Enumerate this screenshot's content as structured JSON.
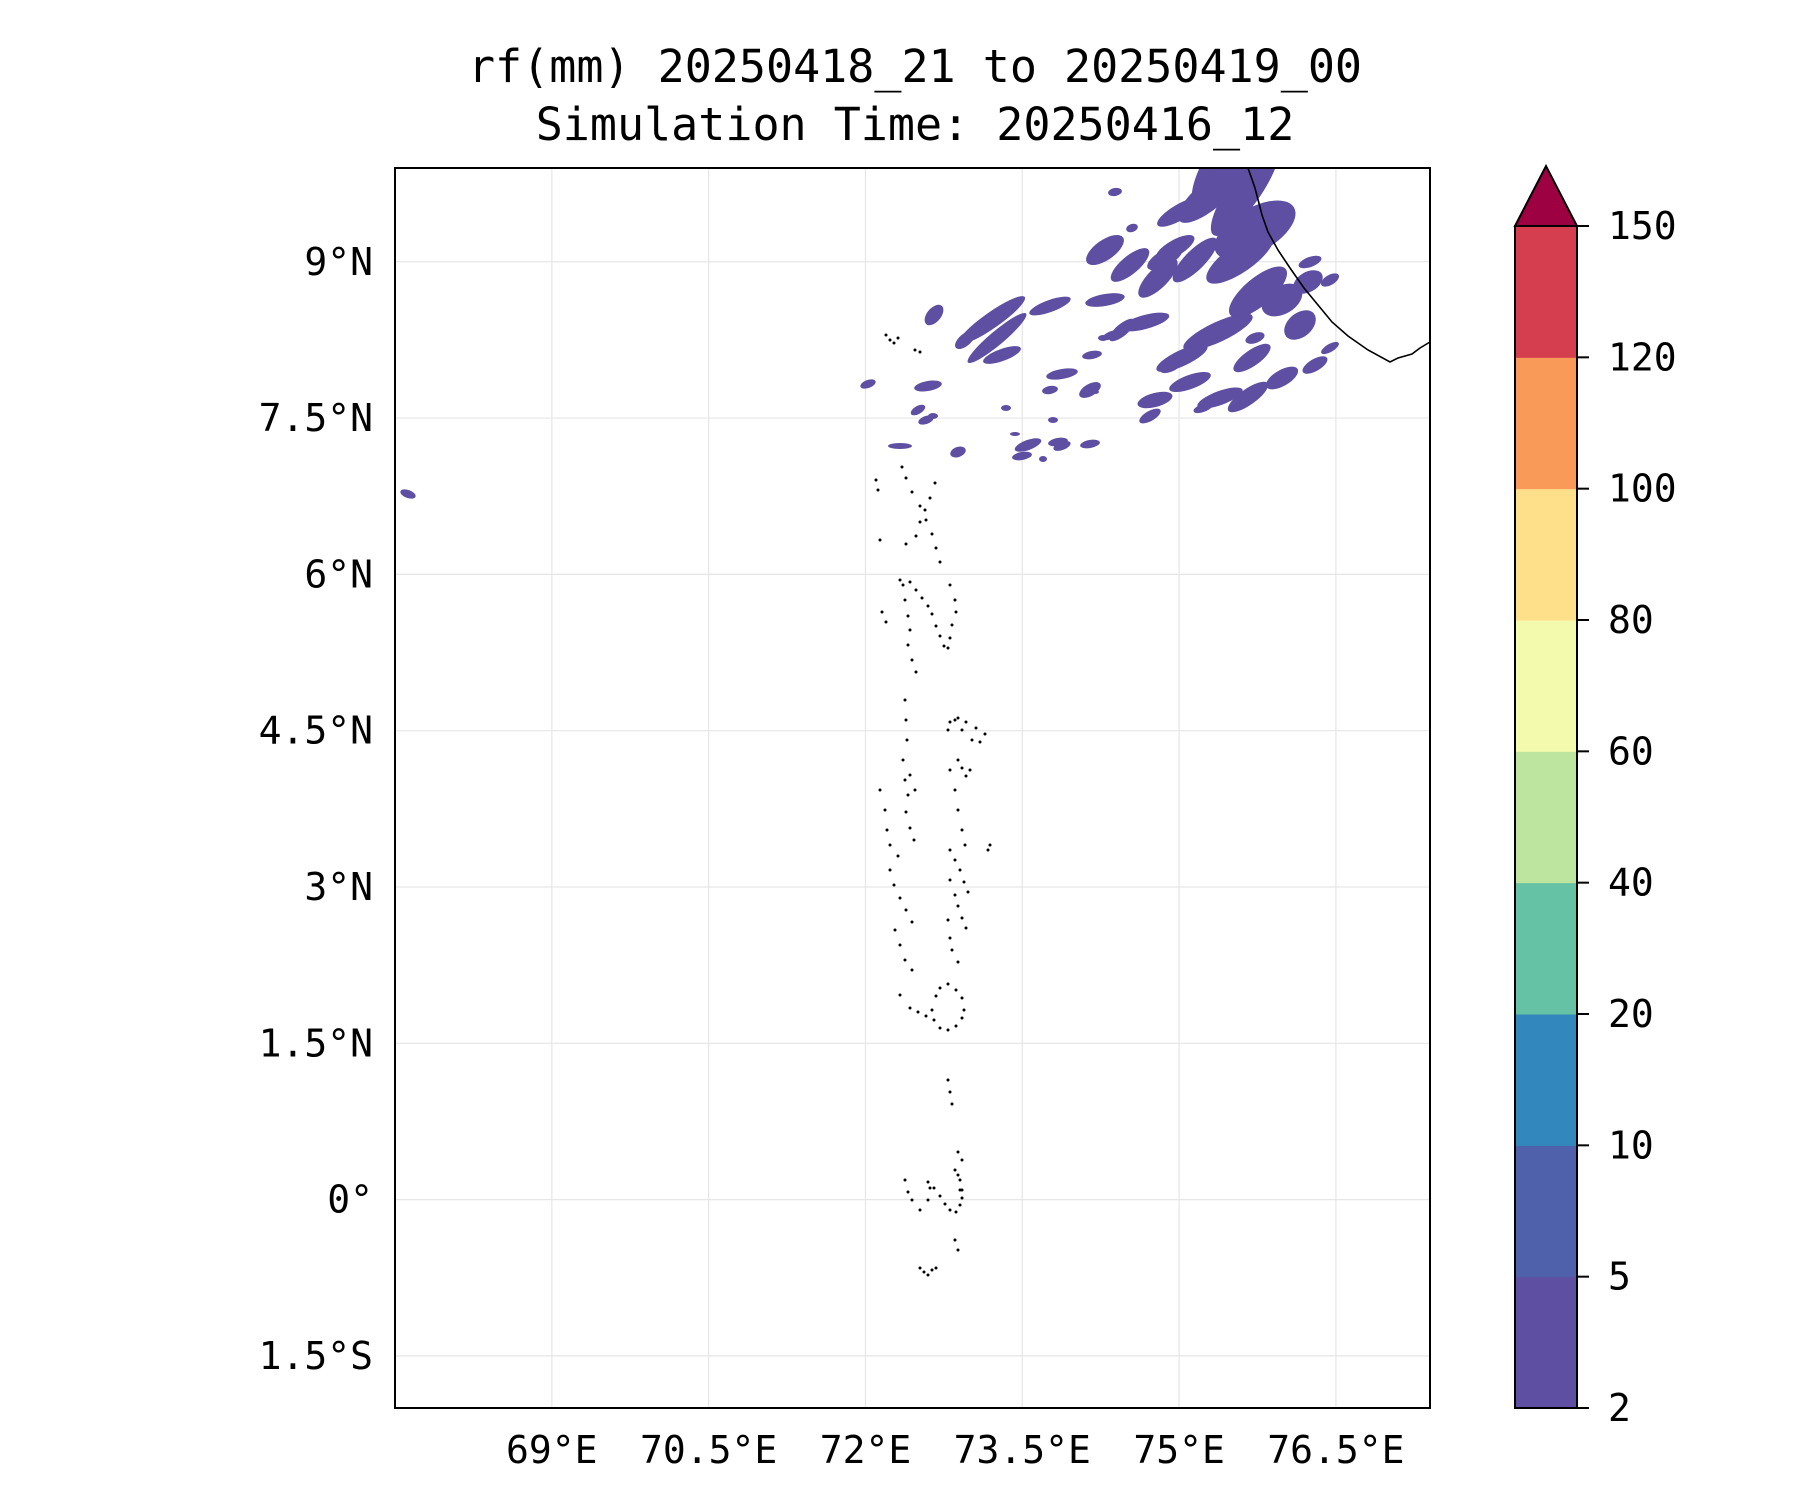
{
  "title": {
    "line1": "rf(mm) 20250418_21 to 20250419_00",
    "line2": "Simulation Time: 20250416_12"
  },
  "map": {
    "lon_range": [
      67.5,
      77.4
    ],
    "lat_range": [
      -2.0,
      9.9
    ],
    "grid": true,
    "lon_ticks": [
      {
        "value": 69.0,
        "label": "69°E"
      },
      {
        "value": 70.5,
        "label": "70.5°E"
      },
      {
        "value": 72.0,
        "label": "72°E"
      },
      {
        "value": 73.5,
        "label": "73.5°E"
      },
      {
        "value": 75.0,
        "label": "75°E"
      },
      {
        "value": 76.5,
        "label": "76.5°E"
      }
    ],
    "lat_ticks": [
      {
        "value": 9.0,
        "label": "9°N"
      },
      {
        "value": 7.5,
        "label": "7.5°N"
      },
      {
        "value": 6.0,
        "label": "6°N"
      },
      {
        "value": 4.5,
        "label": "4.5°N"
      },
      {
        "value": 3.0,
        "label": "3°N"
      },
      {
        "value": 1.5,
        "label": "1.5°N"
      },
      {
        "value": 0.0,
        "label": "0°"
      },
      {
        "value": -1.5,
        "label": "1.5°S"
      }
    ]
  },
  "colorbar": {
    "levels": [
      "2",
      "5",
      "10",
      "20",
      "40",
      "60",
      "80",
      "100",
      "120",
      "150"
    ],
    "colors": [
      "#5e4fa2",
      "#4f61aa",
      "#3288bd",
      "#66c2a5",
      "#bee5a0",
      "#f4faad",
      "#fee08b",
      "#fa9a58",
      "#d53e4f"
    ],
    "extend_color": "#9e0142"
  }
}
